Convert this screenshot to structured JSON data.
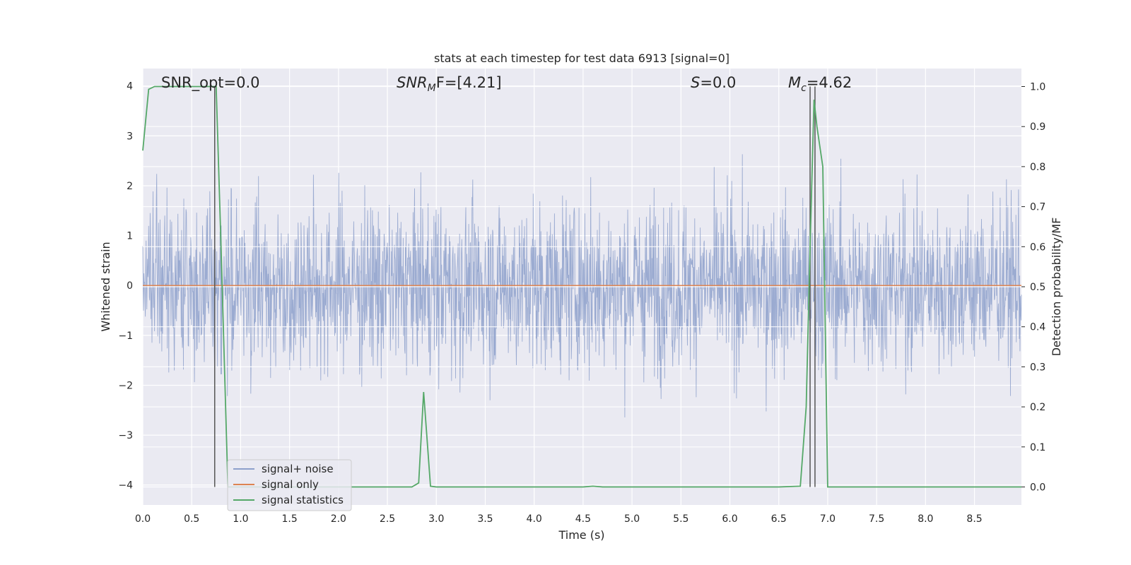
{
  "chart_data": {
    "type": "line",
    "title": "stats at each timestep for test data 6913 [signal=0]",
    "xlabel": "Time (s)",
    "ylabel": "Whitened strain",
    "y2label": "Detection probability/MF",
    "xlim": [
      0,
      8.98
    ],
    "ylim": [
      -4.4,
      4.35
    ],
    "y2lim": [
      -0.045,
      1.045
    ],
    "xticks": [
      "0.0",
      "0.5",
      "1.0",
      "1.5",
      "2.0",
      "2.5",
      "3.0",
      "3.5",
      "4.0",
      "4.5",
      "5.0",
      "5.5",
      "6.0",
      "6.5",
      "7.0",
      "7.5",
      "8.0",
      "8.5"
    ],
    "yticks": [
      "−4",
      "−3",
      "−2",
      "−1",
      "0",
      "1",
      "2",
      "3",
      "4"
    ],
    "y2ticks": [
      "0.0",
      "0.1",
      "0.2",
      "0.3",
      "0.4",
      "0.5",
      "0.6",
      "0.7",
      "0.8",
      "0.9",
      "1.0"
    ],
    "grid": true,
    "legend_position": "lower-left",
    "annotations": {
      "snr_opt": "SNR_opt=0.0",
      "snr_mf_prefix": "SNR",
      "snr_mf_sub": "M",
      "snr_mf_suffix": "F=[4.21]",
      "s_prefix": "S",
      "s_suffix": "=0.0",
      "mc_prefix": "M",
      "mc_sub": "c",
      "mc_suffix": "=4.62"
    },
    "series": [
      {
        "name": "signal+ noise",
        "color": "#8da0cb",
        "description": "whitened noise time series, amplitude roughly within ±4",
        "amplitude_range": [
          -4.0,
          4.0
        ]
      },
      {
        "name": "signal only",
        "color": "#dd8452",
        "x": [
          0,
          8.98
        ],
        "y": [
          0,
          0
        ]
      },
      {
        "name": "signal statistics",
        "color": "#55a868",
        "axis": "right",
        "x": [
          0.0,
          0.06,
          0.12,
          0.2,
          0.3,
          0.4,
          0.5,
          0.6,
          0.68,
          0.72,
          0.75,
          0.8,
          0.87,
          0.93,
          1.0,
          1.5,
          2.0,
          2.5,
          2.75,
          2.82,
          2.87,
          2.94,
          3.0,
          3.5,
          4.0,
          4.5,
          4.6,
          4.7,
          5.0,
          5.5,
          6.0,
          6.5,
          6.72,
          6.78,
          6.82,
          6.86,
          6.89,
          6.95,
          7.0,
          7.05,
          7.5,
          8.0,
          8.5,
          8.98
        ],
        "y": [
          0.84,
          0.993,
          1.0,
          1.0,
          1.0,
          1.0,
          1.0,
          1.0,
          1.0,
          1.0,
          1.0,
          0.6,
          0.0,
          0.0,
          0.0,
          0.0,
          0.0,
          0.0,
          0.0,
          0.01,
          0.237,
          0.002,
          0.0,
          0.0,
          0.0,
          0.0,
          0.002,
          0.0,
          0.0,
          0.0,
          0.0,
          0.0,
          0.002,
          0.2,
          0.6,
          0.967,
          0.9,
          0.8,
          0.0,
          0.0,
          0.0,
          0.0,
          0.0,
          0.0
        ]
      }
    ],
    "vlines": [
      0.735,
      6.82,
      6.87
    ]
  }
}
